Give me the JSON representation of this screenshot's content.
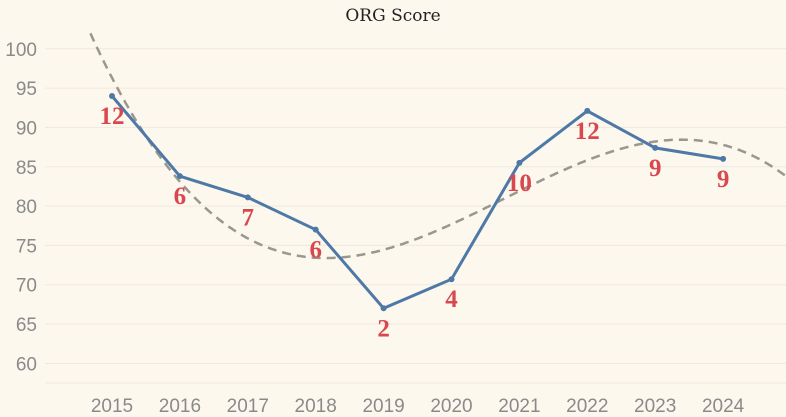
{
  "chart_data": {
    "type": "line",
    "title": "ORG Score",
    "x": [
      "2015",
      "2016",
      "2017",
      "2018",
      "2019",
      "2020",
      "2021",
      "2022",
      "2023",
      "2024"
    ],
    "series": [
      {
        "values": [
          94,
          83.8,
          81.1,
          77,
          67,
          70.7,
          85.5,
          92.1,
          87.4,
          86
        ]
      }
    ],
    "data_labels": [
      "12",
      "6",
      "7",
      "6",
      "2",
      "4",
      "10",
      "12",
      "9",
      "9"
    ],
    "trend": {
      "type": "polynomial",
      "degree": 3,
      "style": "dashed"
    },
    "yticks": [
      60,
      65,
      70,
      75,
      80,
      85,
      90,
      95,
      100
    ],
    "ylim": [
      57.5,
      101.5
    ],
    "xlabel": "",
    "ylabel": "",
    "grid": true,
    "colors": {
      "line": "#4e79a7",
      "trend": "#9a9690",
      "label": "#d9484e",
      "grid": "#efe9dd",
      "background": "#fdf8ee"
    }
  }
}
